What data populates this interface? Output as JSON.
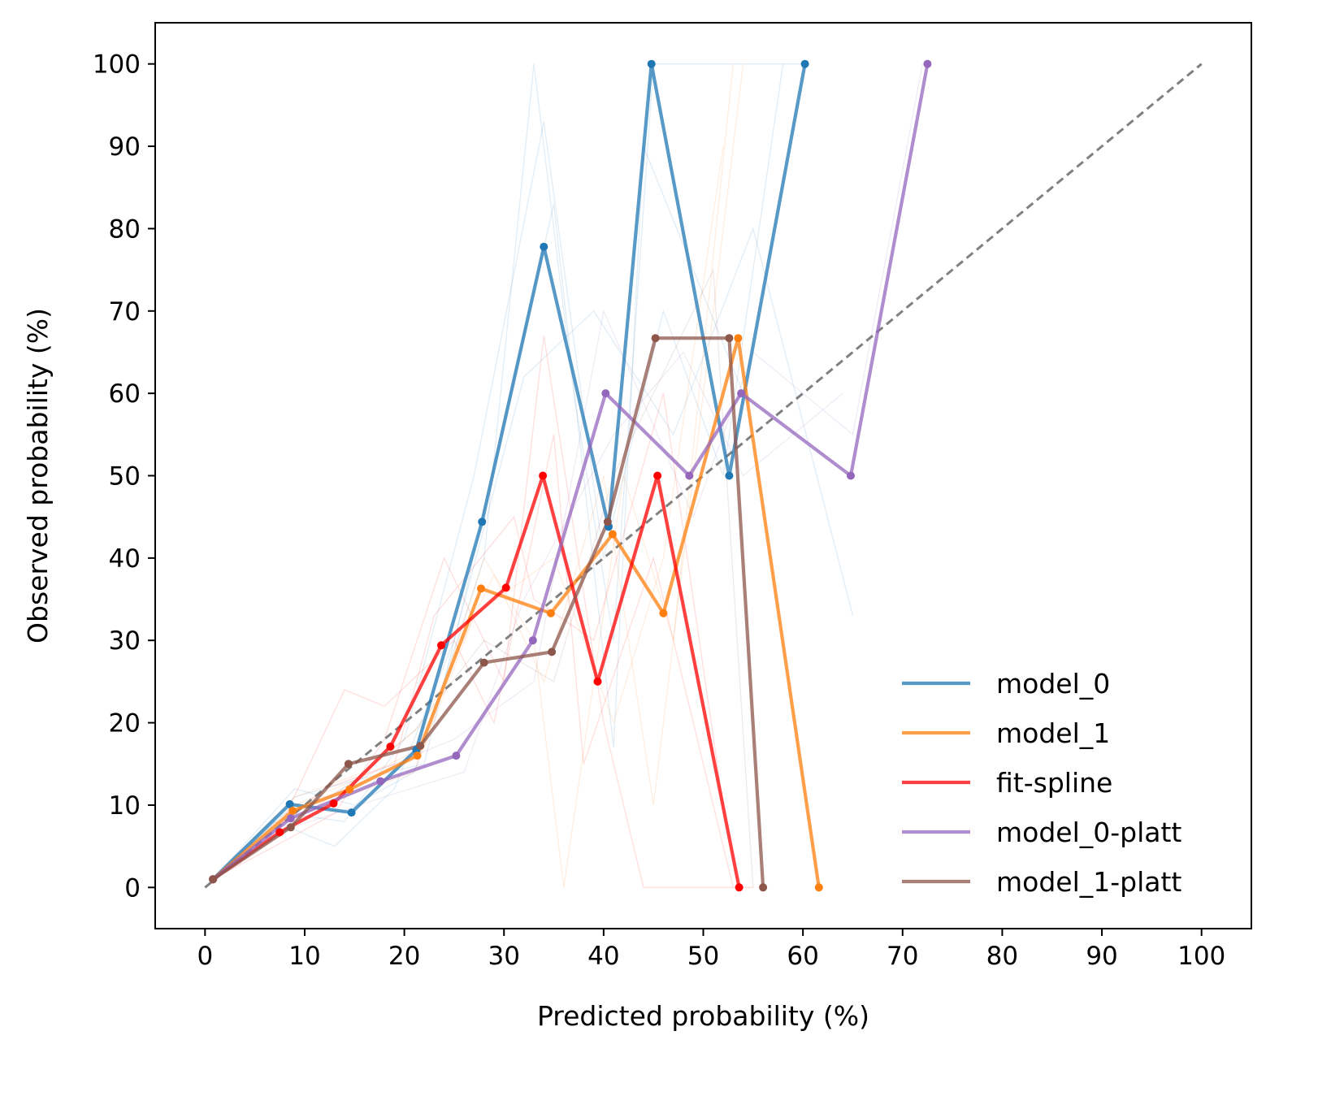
{
  "chart_data": {
    "type": "line",
    "title": "",
    "xlabel": "Predicted probability (%)",
    "ylabel": "Observed probability (%)",
    "xlim": [
      -5,
      105
    ],
    "ylim": [
      -5,
      105
    ],
    "xticks": [
      "0",
      "10",
      "20",
      "30",
      "40",
      "50",
      "60",
      "70",
      "80",
      "90",
      "100"
    ],
    "yticks": [
      "0",
      "10",
      "20",
      "30",
      "40",
      "50",
      "60",
      "70",
      "80",
      "90",
      "100"
    ],
    "grid": false,
    "legend_position": "lower-right",
    "reference_line": {
      "x": [
        0,
        100
      ],
      "y": [
        0,
        100
      ],
      "style": "dashed",
      "color": "#808080"
    },
    "series": [
      {
        "name": "model_0",
        "color": "#1f77b4",
        "x": [
          0.8,
          8.5,
          14.7,
          21.2,
          27.8,
          34.0,
          40.5,
          44.8,
          52.6,
          60.2
        ],
        "y": [
          1.0,
          10.1,
          9.1,
          16.7,
          44.4,
          77.8,
          43.8,
          100.0,
          50.0,
          100.0
        ]
      },
      {
        "name": "model_1",
        "color": "#ff7f0e",
        "x": [
          0.8,
          8.8,
          14.5,
          21.3,
          27.7,
          34.7,
          40.9,
          46.0,
          53.5,
          61.6
        ],
        "y": [
          1.0,
          9.3,
          11.9,
          16.0,
          36.3,
          33.3,
          42.9,
          33.3,
          66.7,
          0.0
        ]
      },
      {
        "name": "fit-spline",
        "color": "#ff0000",
        "x": [
          0.8,
          7.5,
          12.9,
          18.6,
          23.7,
          30.2,
          33.9,
          39.4,
          45.4,
          53.6
        ],
        "y": [
          1.0,
          6.7,
          10.2,
          17.1,
          29.4,
          36.4,
          50.0,
          25.0,
          50.0,
          0.0
        ]
      },
      {
        "name": "model_0-platt",
        "color": "#9467bd",
        "x": [
          0.8,
          8.6,
          17.6,
          25.2,
          32.9,
          40.2,
          48.6,
          53.8,
          64.8,
          72.5
        ],
        "y": [
          1.0,
          8.4,
          12.9,
          16.0,
          30.0,
          60.0,
          50.0,
          60.0,
          50.0,
          100.0
        ]
      },
      {
        "name": "model_1-platt",
        "color": "#8c564b",
        "x": [
          0.8,
          8.6,
          14.4,
          21.6,
          28.0,
          34.8,
          40.4,
          45.2,
          52.6,
          56.0
        ],
        "y": [
          1.0,
          7.3,
          15.0,
          17.2,
          27.3,
          28.6,
          44.4,
          66.7,
          66.7,
          0.0
        ]
      }
    ],
    "background_traces": [
      {
        "color": "#1f77b4",
        "x": [
          0.8,
          9,
          15,
          21,
          28,
          33,
          37,
          41,
          45,
          53,
          60
        ],
        "y": [
          1,
          12,
          10,
          14,
          40,
          100,
          60,
          30,
          100,
          100,
          100
        ]
      },
      {
        "color": "#1f77b4",
        "x": [
          0.8,
          8,
          14,
          20,
          27,
          34,
          40,
          46,
          52,
          58
        ],
        "y": [
          1,
          9,
          8,
          18,
          50,
          93,
          40,
          70,
          50,
          100
        ]
      },
      {
        "color": "#1f77b4",
        "x": [
          0.8,
          9,
          15,
          22,
          26,
          35,
          41,
          44,
          54
        ],
        "y": [
          1,
          11,
          13,
          15,
          35,
          83,
          17,
          90,
          60
        ]
      },
      {
        "color": "#1f77b4",
        "x": [
          0.8,
          7,
          13,
          19,
          25,
          32,
          39,
          47,
          55,
          65
        ],
        "y": [
          1,
          8,
          5,
          12,
          30,
          62,
          70,
          55,
          80,
          33
        ]
      },
      {
        "color": "#ff7f0e",
        "x": [
          0.8,
          9,
          15,
          22,
          28,
          33,
          36,
          42,
          47,
          53
        ],
        "y": [
          1,
          10,
          13,
          17,
          40,
          30,
          0,
          50,
          30,
          100
        ]
      },
      {
        "color": "#ff7f0e",
        "x": [
          0.8,
          8,
          14,
          21,
          27,
          35,
          41,
          46,
          52
        ],
        "y": [
          1,
          8,
          11,
          14,
          33,
          40,
          20,
          40,
          90
        ]
      },
      {
        "color": "#ff7f0e",
        "x": [
          0.8,
          9,
          16,
          22,
          29,
          34,
          40,
          45,
          54
        ],
        "y": [
          1,
          11,
          14,
          20,
          38,
          25,
          50,
          10,
          100
        ]
      },
      {
        "color": "#ff0000",
        "x": [
          0.8,
          7,
          13,
          18,
          24,
          30,
          34,
          40,
          44,
          55
        ],
        "y": [
          1,
          5,
          9,
          18,
          40,
          25,
          67,
          20,
          0,
          0
        ]
      },
      {
        "color": "#ff0000",
        "x": [
          0.8,
          8,
          12,
          19,
          23,
          31,
          33,
          39,
          46,
          52
        ],
        "y": [
          1,
          8,
          12,
          15,
          33,
          45,
          35,
          30,
          60,
          10
        ]
      },
      {
        "color": "#ff0000",
        "x": [
          0.8,
          7,
          14,
          18,
          25,
          29,
          35,
          38,
          45,
          53
        ],
        "y": [
          1,
          6,
          24,
          22,
          30,
          20,
          55,
          15,
          40,
          0
        ]
      },
      {
        "color": "#9467bd",
        "x": [
          0.8,
          9,
          17,
          25,
          33,
          40,
          49,
          55,
          65,
          72
        ],
        "y": [
          1,
          9,
          14,
          18,
          25,
          70,
          45,
          65,
          55,
          100
        ]
      },
      {
        "color": "#9467bd",
        "x": [
          0.8,
          8,
          18,
          26,
          32,
          41,
          48,
          54,
          64
        ],
        "y": [
          1,
          7,
          11,
          14,
          35,
          55,
          65,
          50,
          60
        ]
      },
      {
        "color": "#8c564b",
        "x": [
          0.8,
          9,
          15,
          21,
          28,
          35,
          41,
          45,
          51,
          55
        ],
        "y": [
          1,
          8,
          13,
          19,
          30,
          25,
          50,
          60,
          75,
          0
        ]
      }
    ],
    "marker_series": [
      {
        "color": "#1f77b4",
        "x": [
          0.8,
          8.5,
          14.7,
          21.2,
          27.8,
          34.0,
          40.5,
          44.8,
          52.6,
          60.2
        ],
        "y": [
          1.0,
          10.1,
          9.1,
          16.7,
          44.4,
          77.8,
          43.8,
          100.0,
          50.0,
          100.0
        ]
      },
      {
        "color": "#ff7f0e",
        "x": [
          0.8,
          8.8,
          14.5,
          21.3,
          27.7,
          34.7,
          40.9,
          46.0,
          53.5,
          61.6
        ],
        "y": [
          1.0,
          9.3,
          11.9,
          16.0,
          36.3,
          33.3,
          42.9,
          33.3,
          66.7,
          0.0
        ]
      },
      {
        "color": "#ff0000",
        "x": [
          0.8,
          7.5,
          12.9,
          18.6,
          23.7,
          30.2,
          33.9,
          39.4,
          45.4,
          53.6
        ],
        "y": [
          1.0,
          6.7,
          10.2,
          17.1,
          29.4,
          36.4,
          50.0,
          25.0,
          50.0,
          0.0
        ]
      },
      {
        "color": "#9467bd",
        "x": [
          0.8,
          8.6,
          17.6,
          25.2,
          32.9,
          40.2,
          48.6,
          53.8,
          64.8,
          72.5
        ],
        "y": [
          1.0,
          8.4,
          12.9,
          16.0,
          30.0,
          60.0,
          50.0,
          60.0,
          50.0,
          100.0
        ]
      },
      {
        "color": "#8c564b",
        "x": [
          0.8,
          8.6,
          14.4,
          21.6,
          28.0,
          34.8,
          40.4,
          45.2,
          52.6,
          56.0
        ],
        "y": [
          1.0,
          7.3,
          15.0,
          17.2,
          27.3,
          28.6,
          44.4,
          66.7,
          66.7,
          0.0
        ]
      }
    ]
  }
}
